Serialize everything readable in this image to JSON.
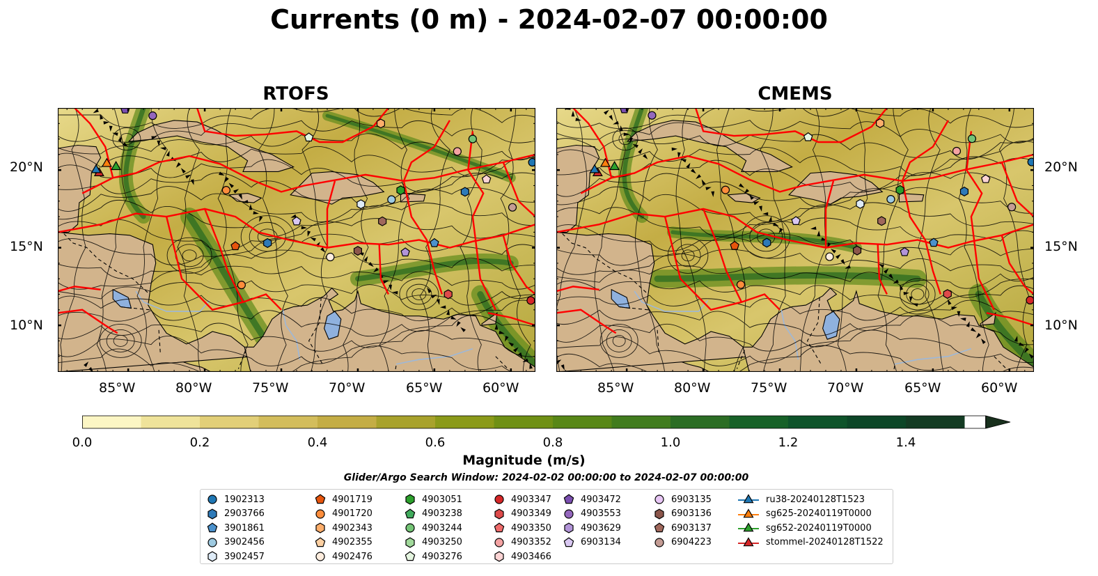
{
  "title": "Currents (0 m) - 2024-02-07 00:00:00",
  "panels": [
    {
      "title": "RTOFS"
    },
    {
      "title": "CMEMS"
    }
  ],
  "lat_ticks": [
    "20°N",
    "15°N",
    "10°N"
  ],
  "lon_ticks": [
    "85°W",
    "80°W",
    "75°W",
    "70°W",
    "65°W",
    "60°W"
  ],
  "colorbar": {
    "label": "Magnitude (m/s)",
    "ticks": [
      "0.0",
      "0.2",
      "0.4",
      "0.6",
      "0.8",
      "1.0",
      "1.2",
      "1.4"
    ],
    "range": [
      0.0,
      1.5
    ],
    "extend": "max",
    "colors": [
      "#fcf6c4",
      "#efe39a",
      "#e2cf78",
      "#d3bd5c",
      "#c4ad45",
      "#a8a22c",
      "#8b9a19",
      "#6f9015",
      "#588717",
      "#417c1e",
      "#2b6d24",
      "#176128",
      "#0e532a",
      "#0c4627",
      "#133b23",
      "#18301d"
    ]
  },
  "search_window": "Glider/Argo Search Window: 2024-02-02 00:00:00 to 2024-02-07 00:00:00",
  "legend": {
    "columns": [
      [
        {
          "label": "1902313",
          "marker": "circle",
          "color": "#1f77b4"
        },
        {
          "label": "2903766",
          "marker": "hexagon",
          "color": "#2e7ab8"
        },
        {
          "label": "3901861",
          "marker": "pentagon",
          "color": "#4b91cc"
        },
        {
          "label": "3902456",
          "marker": "circle",
          "color": "#9ecae1"
        },
        {
          "label": "3902457",
          "marker": "hexagon",
          "color": "#deebf7"
        }
      ],
      [
        {
          "label": "4901719",
          "marker": "pentagon",
          "color": "#e6550d"
        },
        {
          "label": "4901720",
          "marker": "circle",
          "color": "#fd8d3c"
        },
        {
          "label": "4902343",
          "marker": "hexagon",
          "color": "#fdae6b"
        },
        {
          "label": "4902355",
          "marker": "pentagon",
          "color": "#fdd0a2"
        },
        {
          "label": "4902476",
          "marker": "circle",
          "color": "#feedde"
        }
      ],
      [
        {
          "label": "4903051",
          "marker": "hexagon",
          "color": "#2ca02c"
        },
        {
          "label": "4903238",
          "marker": "pentagon",
          "color": "#41ab5d"
        },
        {
          "label": "4903244",
          "marker": "circle",
          "color": "#74c476"
        },
        {
          "label": "4903250",
          "marker": "hexagon",
          "color": "#a1d99b"
        },
        {
          "label": "4903276",
          "marker": "pentagon",
          "color": "#e5f5e0"
        }
      ],
      [
        {
          "label": "4903347",
          "marker": "circle",
          "color": "#d62728"
        },
        {
          "label": "4903349",
          "marker": "hexagon",
          "color": "#de4a4a"
        },
        {
          "label": "4903350",
          "marker": "pentagon",
          "color": "#ef6b6b"
        },
        {
          "label": "4903352",
          "marker": "circle",
          "color": "#f4a3a3"
        },
        {
          "label": "4903466",
          "marker": "hexagon",
          "color": "#fcd4d4"
        }
      ],
      [
        {
          "label": "4903472",
          "marker": "pentagon",
          "color": "#7b4fb0"
        },
        {
          "label": "4903553",
          "marker": "circle",
          "color": "#9467bd"
        },
        {
          "label": "4903629",
          "marker": "hexagon",
          "color": "#b294d8"
        },
        {
          "label": "6903134",
          "marker": "pentagon",
          "color": "#d9c8f2"
        }
      ],
      [
        {
          "label": "6903135",
          "marker": "circle",
          "color": "#e8c7f5"
        },
        {
          "label": "6903136",
          "marker": "hexagon",
          "color": "#8c564b"
        },
        {
          "label": "6903137",
          "marker": "pentagon",
          "color": "#a0685c"
        },
        {
          "label": "6904223",
          "marker": "circle",
          "color": "#c49c94"
        }
      ],
      [
        {
          "label": "ru38-20240128T1523",
          "marker": "triangle-line",
          "color": "#1f77b4"
        },
        {
          "label": "sg625-20240119T0000",
          "marker": "triangle-line",
          "color": "#ff7f0e"
        },
        {
          "label": "sg652-20240119T0000",
          "marker": "triangle-line",
          "color": "#2ca02c"
        },
        {
          "label": "stommel-20240128T1522",
          "marker": "triangle-line",
          "color": "#d62728"
        }
      ]
    ]
  }
}
